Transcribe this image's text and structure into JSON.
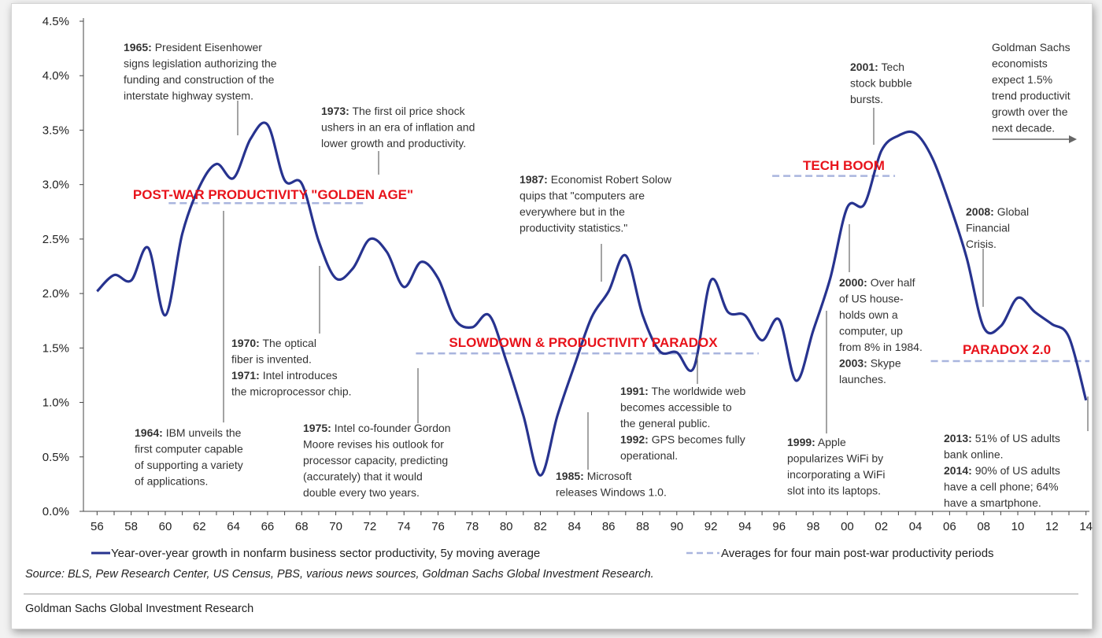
{
  "chart_data": {
    "type": "line",
    "x_tick_labels": [
      "56",
      "58",
      "60",
      "62",
      "64",
      "66",
      "68",
      "70",
      "72",
      "74",
      "76",
      "78",
      "80",
      "82",
      "84",
      "86",
      "88",
      "90",
      "92",
      "94",
      "96",
      "98",
      "00",
      "02",
      "04",
      "06",
      "08",
      "10",
      "12",
      "14"
    ],
    "y_tick_labels": [
      "0.0%",
      "0.5%",
      "1.0%",
      "1.5%",
      "2.0%",
      "2.5%",
      "3.0%",
      "3.5%",
      "4.0%",
      "4.5%"
    ],
    "ylim": [
      0,
      4.5
    ],
    "xlim": [
      1955.2,
      2014.2
    ],
    "grid": false,
    "series": [
      {
        "name": "Year-over-year growth in nonfarm business sector productivity, 5y moving average",
        "style": "solid",
        "color": "#27338f",
        "x": [
          1956,
          1957,
          1958,
          1959,
          1960,
          1961,
          1962,
          1963,
          1964,
          1965,
          1966,
          1967,
          1968,
          1969,
          1970,
          1971,
          1972,
          1973,
          1974,
          1975,
          1976,
          1977,
          1978,
          1979,
          1980,
          1981,
          1982,
          1983,
          1984,
          1985,
          1986,
          1987,
          1988,
          1989,
          1990,
          1991,
          1992,
          1993,
          1994,
          1995,
          1996,
          1997,
          1998,
          1999,
          2000,
          2001,
          2002,
          2003,
          2004,
          2005,
          2006,
          2007,
          2008,
          2009,
          2010,
          2011,
          2012,
          2013,
          2014
        ],
        "values": [
          2.02,
          2.17,
          2.12,
          2.42,
          1.8,
          2.55,
          2.98,
          3.19,
          3.06,
          3.42,
          3.55,
          3.04,
          3.01,
          2.48,
          2.14,
          2.23,
          2.5,
          2.38,
          2.06,
          2.29,
          2.14,
          1.76,
          1.69,
          1.8,
          1.38,
          0.88,
          0.33,
          0.88,
          1.34,
          1.78,
          2.02,
          2.35,
          1.8,
          1.47,
          1.46,
          1.32,
          2.12,
          1.83,
          1.8,
          1.57,
          1.76,
          1.2,
          1.66,
          2.14,
          2.79,
          2.82,
          3.31,
          3.45,
          3.47,
          3.24,
          2.82,
          2.33,
          1.69,
          1.7,
          1.96,
          1.83,
          1.72,
          1.6,
          1.02
        ]
      },
      {
        "name": "Averages for four main post-war productivity periods",
        "style": "dashed",
        "color": "#a9b5de",
        "segments": [
          {
            "x": [
              1960.2,
              1971.6
            ],
            "value": 2.83
          },
          {
            "x": [
              1974.7,
              1994.8
            ],
            "value": 1.45
          },
          {
            "x": [
              1995.6,
              2002.8
            ],
            "value": 3.08
          },
          {
            "x": [
              2004.9,
              2014.2
            ],
            "value": 1.38
          }
        ]
      }
    ],
    "period_labels": [
      {
        "text": "POST-WAR PRODUCTIVITY \"GOLDEN AGE\""
      },
      {
        "text": "SLOWDOWN & PRODUCTIVITY PARADOX"
      },
      {
        "text": "TECH BOOM"
      },
      {
        "text": "PARADOX 2.0"
      }
    ],
    "annotations": [
      {
        "id": "a1965",
        "lines": [
          [
            "1965:",
            " President Eisenhower"
          ],
          [
            "",
            "signs legislation authorizing the"
          ],
          [
            "",
            "funding and construction of the"
          ],
          [
            "",
            "interstate highway system."
          ]
        ]
      },
      {
        "id": "a1973",
        "lines": [
          [
            "1973:",
            " The first oil price shock"
          ],
          [
            "",
            "ushers in an era of inflation and"
          ],
          [
            "",
            "lower growth and productivity."
          ]
        ]
      },
      {
        "id": "a1987",
        "lines": [
          [
            "1987:",
            " Economist Robert Solow"
          ],
          [
            "",
            "quips that \"computers are"
          ],
          [
            "",
            "everywhere but in the"
          ],
          [
            "",
            "productivity statistics.\""
          ]
        ]
      },
      {
        "id": "a2001",
        "lines": [
          [
            "2001:",
            " Tech"
          ],
          [
            "",
            "stock bubble"
          ],
          [
            "",
            "bursts."
          ]
        ]
      },
      {
        "id": "agold",
        "lines": [
          [
            "",
            "Goldman Sachs"
          ],
          [
            "",
            "economists"
          ],
          [
            "",
            "expect 1.5%"
          ],
          [
            "",
            "trend productivit"
          ],
          [
            "",
            "growth over the"
          ],
          [
            "",
            "next decade."
          ]
        ]
      },
      {
        "id": "a2008",
        "lines": [
          [
            "2008:",
            " Global"
          ],
          [
            "",
            "Financial"
          ],
          [
            "",
            "Crisis."
          ]
        ]
      },
      {
        "id": "a2000",
        "lines": [
          [
            "2000:",
            " Over half"
          ],
          [
            "",
            "of US house-"
          ],
          [
            "",
            "holds own a"
          ],
          [
            "",
            "computer, up"
          ],
          [
            "",
            "from 8% in 1984."
          ],
          [
            "2003:",
            " Skype"
          ],
          [
            "",
            "launches."
          ]
        ]
      },
      {
        "id": "a1970",
        "lines": [
          [
            "1970:",
            " The optical"
          ],
          [
            "",
            "fiber is invented."
          ],
          [
            "1971:",
            " Intel introduces"
          ],
          [
            "",
            "the microprocessor chip."
          ]
        ]
      },
      {
        "id": "a1964",
        "lines": [
          [
            "1964:",
            " IBM unveils the"
          ],
          [
            "",
            "first computer capable"
          ],
          [
            "",
            "of supporting a variety"
          ],
          [
            "",
            "of applications."
          ]
        ]
      },
      {
        "id": "a1975",
        "lines": [
          [
            "1975:",
            " Intel co-founder Gordon"
          ],
          [
            "",
            "Moore revises his outlook for"
          ],
          [
            "",
            "processor capacity, predicting"
          ],
          [
            "",
            "(accurately) that it would"
          ],
          [
            "",
            "double every two years."
          ]
        ]
      },
      {
        "id": "a1985",
        "lines": [
          [
            "1985:",
            " Microsoft"
          ],
          [
            "",
            "releases Windows 1.0."
          ]
        ]
      },
      {
        "id": "a1991",
        "lines": [
          [
            "1991:",
            " The worldwide web"
          ],
          [
            "",
            "becomes accessible to"
          ],
          [
            "",
            "the general public."
          ],
          [
            "1992:",
            " GPS becomes fully"
          ],
          [
            "",
            "operational."
          ]
        ]
      },
      {
        "id": "a1999",
        "lines": [
          [
            "1999:",
            " Apple"
          ],
          [
            "",
            "popularizes WiFi by"
          ],
          [
            "",
            "incorporating a WiFi"
          ],
          [
            "",
            "slot into its laptops."
          ]
        ]
      },
      {
        "id": "a2013",
        "lines": [
          [
            "2013:",
            " 51% of US adults"
          ],
          [
            "",
            "bank online."
          ],
          [
            "2014:",
            " 90% of US adults"
          ],
          [
            "",
            "have a cell phone; 64%"
          ],
          [
            "",
            "have a smartphone."
          ]
        ]
      }
    ],
    "source": "Source: BLS, Pew Research Center, US Census, PBS, various news sources, Goldman Sachs Global Investment Research.",
    "footer": "Goldman Sachs Global Investment Research"
  }
}
